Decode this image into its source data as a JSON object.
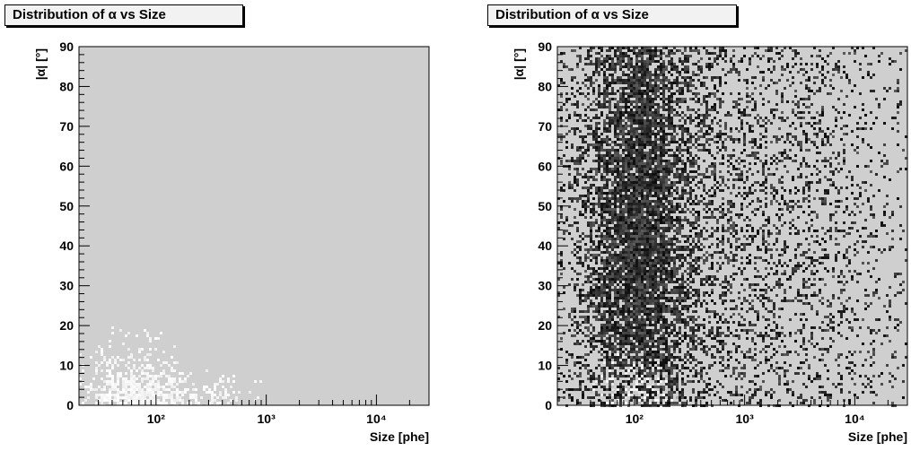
{
  "chart_data": [
    {
      "type": "heatmap",
      "title": "Distribution of α vs Size",
      "xlabel": "Size [phe]",
      "ylabel": "|α| [°]",
      "xscale": "log",
      "xlim": [
        20,
        30000
      ],
      "ylim": [
        0,
        90
      ],
      "xticks": [
        {
          "value": 100,
          "label": "10²"
        },
        {
          "value": 1000,
          "label": "10³"
        },
        {
          "value": 10000,
          "label": "10⁴"
        }
      ],
      "yticks": [
        0,
        10,
        20,
        30,
        40,
        50,
        60,
        70,
        80,
        90
      ],
      "background": "#cfcfcf",
      "point_color": "#000000",
      "gap_color": "#ffffff",
      "density_clusters": [
        {
          "x_center": 60,
          "y_center": 3,
          "x_spread_decades": 0.25,
          "y_spread": 8,
          "weight": 0.6,
          "shade": "white"
        },
        {
          "x_center": 150,
          "y_center": 2,
          "x_spread_decades": 0.45,
          "y_spread": 4,
          "weight": 0.4,
          "shade": "white"
        }
      ]
    },
    {
      "type": "heatmap",
      "title": "Distribution of α vs Size",
      "xlabel": "Size [phe]",
      "ylabel": "|α| [°]",
      "xscale": "log",
      "xlim": [
        20,
        30000
      ],
      "ylim": [
        0,
        90
      ],
      "xticks": [
        {
          "value": 100,
          "label": "10²"
        },
        {
          "value": 1000,
          "label": "10³"
        },
        {
          "value": 10000,
          "label": "10⁴"
        }
      ],
      "yticks": [
        0,
        10,
        20,
        30,
        40,
        50,
        60,
        70,
        80,
        90
      ],
      "background": "#cfcfcf",
      "point_color": "#000000",
      "gap_color": "#ffffff",
      "density_clusters": [
        {
          "x_center": 100,
          "y_center": 45,
          "x_spread_decades": 0.35,
          "y_spread": 60,
          "weight": 0.8,
          "shade": "black"
        },
        {
          "x_center": 1000,
          "y_center": 45,
          "x_spread_decades": 0.9,
          "y_spread": 60,
          "weight": 0.3,
          "shade": "black"
        },
        {
          "x_center": 100,
          "y_center": 3,
          "x_spread_decades": 0.2,
          "y_spread": 5,
          "weight": 0.5,
          "shade": "white"
        }
      ]
    }
  ]
}
